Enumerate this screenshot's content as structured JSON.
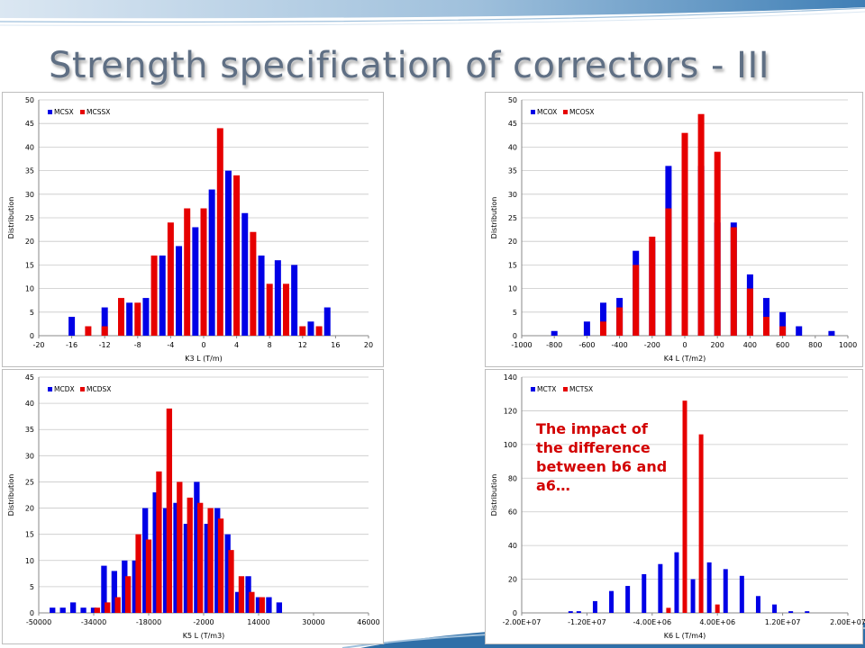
{
  "slide": {
    "title": "Strength specification of correctors - III",
    "annotation": "The impact of the difference between b6 and a6…",
    "page_number": "",
    "colors": {
      "title": "#5f6f84",
      "series_1": "#0000e6",
      "series_2": "#e60000",
      "annotation": "#d20000"
    }
  },
  "chart_data": [
    {
      "type": "bar",
      "xlabel": "K3 L (T/m)",
      "ylabel": "Distribution",
      "ylim": [
        0,
        50
      ],
      "yticks": [
        0,
        5,
        10,
        15,
        20,
        25,
        30,
        35,
        40,
        45,
        50
      ],
      "xlim": [
        -20,
        20
      ],
      "xticks": [
        -20,
        -16,
        -12,
        -8,
        -4,
        0,
        4,
        8,
        12,
        16,
        20
      ],
      "tick_labels": [
        "-20",
        "-16",
        "-12",
        "-8",
        "-4",
        "0",
        "4",
        "8",
        "12",
        "16",
        "20"
      ],
      "legend": "top-left",
      "grid": true,
      "series": [
        {
          "name": "MCSX",
          "color": "#0000e6",
          "x": [
            -16,
            -12,
            -9,
            -7,
            -5,
            -3,
            -1,
            1,
            3,
            5,
            7,
            9,
            11,
            13,
            15
          ],
          "values": [
            4,
            6,
            7,
            8,
            17,
            19,
            23,
            31,
            35,
            26,
            17,
            16,
            15,
            3,
            6
          ]
        },
        {
          "name": "MCSSX",
          "color": "#e60000",
          "x": [
            -14,
            -12,
            -10,
            -8,
            -6,
            -4,
            -2,
            0,
            2,
            4,
            6,
            8,
            10,
            12,
            14
          ],
          "values": [
            2,
            2,
            8,
            7,
            17,
            24,
            27,
            27,
            44,
            34,
            22,
            11,
            11,
            2,
            2
          ]
        }
      ]
    },
    {
      "type": "bar",
      "xlabel": "K4 L (T/m2)",
      "ylabel": "Distribution",
      "ylim": [
        0,
        50
      ],
      "yticks": [
        0,
        5,
        10,
        15,
        20,
        25,
        30,
        35,
        40,
        45,
        50
      ],
      "xlim": [
        -1000,
        1000
      ],
      "xticks": [
        -1000,
        -800,
        -600,
        -400,
        -200,
        0,
        200,
        400,
        600,
        800,
        1000
      ],
      "tick_labels": [
        "-1000",
        "-800",
        "-600",
        "-400",
        "-200",
        "0",
        "200",
        "400",
        "600",
        "800",
        "1000"
      ],
      "legend": "top-left",
      "grid": true,
      "series": [
        {
          "name": "MCOX",
          "color": "#0000e6",
          "x": [
            -800,
            -600,
            -500,
            -400,
            -300,
            -200,
            -100,
            0,
            100,
            200,
            300,
            400,
            500,
            600,
            700,
            900
          ],
          "values": [
            1,
            3,
            7,
            8,
            18,
            20,
            36,
            34,
            36,
            24,
            24,
            13,
            8,
            5,
            2,
            1
          ]
        },
        {
          "name": "MCOSX",
          "color": "#e60000",
          "x": [
            -500,
            -400,
            -300,
            -200,
            -100,
            0,
            100,
            200,
            300,
            400,
            500,
            600
          ],
          "values": [
            3,
            6,
            15,
            21,
            27,
            43,
            47,
            39,
            23,
            10,
            4,
            2
          ]
        }
      ]
    },
    {
      "type": "bar",
      "xlabel": "K5 L (T/m3)",
      "ylabel": "Distribution",
      "ylim": [
        0,
        45
      ],
      "yticks": [
        0,
        5,
        10,
        15,
        20,
        25,
        30,
        35,
        40,
        45
      ],
      "xlim": [
        -50000,
        46000
      ],
      "xticks": [
        -50000,
        -34000,
        -18000,
        -2000,
        14000,
        30000,
        46000
      ],
      "tick_labels": [
        "-50000",
        "-34000",
        "-18000",
        "-2000",
        "14000",
        "30000",
        "46000"
      ],
      "legend": "top-left",
      "grid": true,
      "series": [
        {
          "name": "MCDX",
          "color": "#0000e6",
          "x": [
            -46000,
            -43000,
            -40000,
            -37000,
            -34000,
            -31000,
            -28000,
            -25000,
            -22000,
            -19000,
            -16000,
            -13000,
            -10000,
            -7000,
            -4000,
            -1000,
            2000,
            5000,
            8000,
            11000,
            14000,
            17000,
            20000,
            23000,
            26000,
            29000,
            32000,
            35000,
            38000,
            41000
          ],
          "values": [
            1,
            1,
            2,
            1,
            1,
            9,
            8,
            10,
            10,
            20,
            23,
            20,
            21,
            17,
            25,
            17,
            20,
            15,
            4,
            7,
            3,
            3,
            2,
            0,
            0,
            0,
            0,
            0,
            0,
            0
          ]
        },
        {
          "name": "MCDSX",
          "color": "#e60000",
          "x": [
            -33000,
            -30000,
            -27000,
            -24000,
            -21000,
            -18000,
            -15000,
            -12000,
            -9000,
            -6000,
            -3000,
            0,
            3000,
            6000,
            9000,
            12000,
            15000,
            18000,
            21000,
            24000
          ],
          "values": [
            1,
            2,
            3,
            7,
            15,
            14,
            27,
            39,
            25,
            22,
            21,
            20,
            18,
            12,
            7,
            4,
            3,
            0,
            0,
            0
          ]
        }
      ]
    },
    {
      "type": "bar",
      "xlabel": "K6 L (T/m4)",
      "ylabel": "Distribution",
      "ylim": [
        0,
        140
      ],
      "yticks": [
        0,
        20,
        40,
        60,
        80,
        100,
        120,
        140
      ],
      "xlim": [
        -20000000,
        20000000
      ],
      "xticks": [
        -20000000,
        -12000000,
        -4000000,
        4000000,
        12000000,
        20000000
      ],
      "tick_labels": [
        "-2.00E+07",
        "-1.20E+07",
        "-4.00E+06",
        "4.00E+06",
        "1.20E+07",
        "2.00E+07"
      ],
      "legend": "top-left",
      "grid": true,
      "series": [
        {
          "name": "MCTX",
          "color": "#0000e6",
          "x": [
            -14000000,
            -13000000,
            -11000000,
            -9000000,
            -7000000,
            -5000000,
            -3000000,
            -1000000,
            1000000,
            3000000,
            5000000,
            7000000,
            9000000,
            11000000,
            13000000,
            15000000
          ],
          "values": [
            1,
            1,
            7,
            13,
            16,
            23,
            29,
            36,
            20,
            30,
            26,
            22,
            10,
            5,
            1,
            1
          ]
        },
        {
          "name": "MCTSX",
          "color": "#e60000",
          "x": [
            -2000000,
            0,
            2000000,
            4000000
          ],
          "values": [
            3,
            126,
            106,
            5
          ]
        }
      ]
    }
  ]
}
